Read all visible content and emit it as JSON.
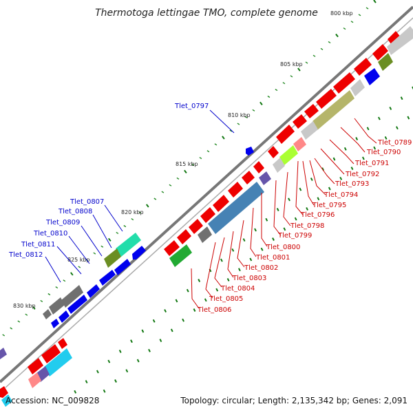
{
  "title": "Thermotoga lettingae TMO, complete genome",
  "footer": {
    "accession": "Accession: NC_009828",
    "stats": "Topology: circular; Length: 2,135,342 bp; Genes: 2,091"
  },
  "scale_labels": [
    "800 kbp",
    "805 kbp",
    "810 kbp",
    "815 kbp",
    "820 kbp",
    "825 kbp",
    "830 kbp"
  ],
  "gene_labels_plus": [
    "Tlet_0797",
    "Tlet_0807",
    "Tlet_0808",
    "Tlet_0809",
    "Tlet_0810",
    "Tlet_0811",
    "Tlet_0812"
  ],
  "gene_labels_minus": [
    "Tlet_0789",
    "Tlet_0790",
    "Tlet_0791",
    "Tlet_0792",
    "Tlet_0793",
    "Tlet_0794",
    "Tlet_0795",
    "Tlet_0796",
    "Tlet_0798",
    "Tlet_0799",
    "Tlet_0800",
    "Tlet_0801",
    "Tlet_0802",
    "Tlet_0803",
    "Tlet_0804",
    "Tlet_0805",
    "Tlet_0806"
  ],
  "colors": {
    "plus_strand": "#0000ee",
    "minus_strand": "#ee0000",
    "backbone": "#777777",
    "tick_green": "#117711",
    "cog_olive": "#b5b56a",
    "cog_steel": "#4682b4",
    "cog_lime": "#aaff33",
    "cog_teal": "#22ddaa",
    "cog_grey": "#707070",
    "cog_cyan": "#22ccee",
    "cog_pink": "#ff8888",
    "cog_purple": "#6655aa"
  }
}
